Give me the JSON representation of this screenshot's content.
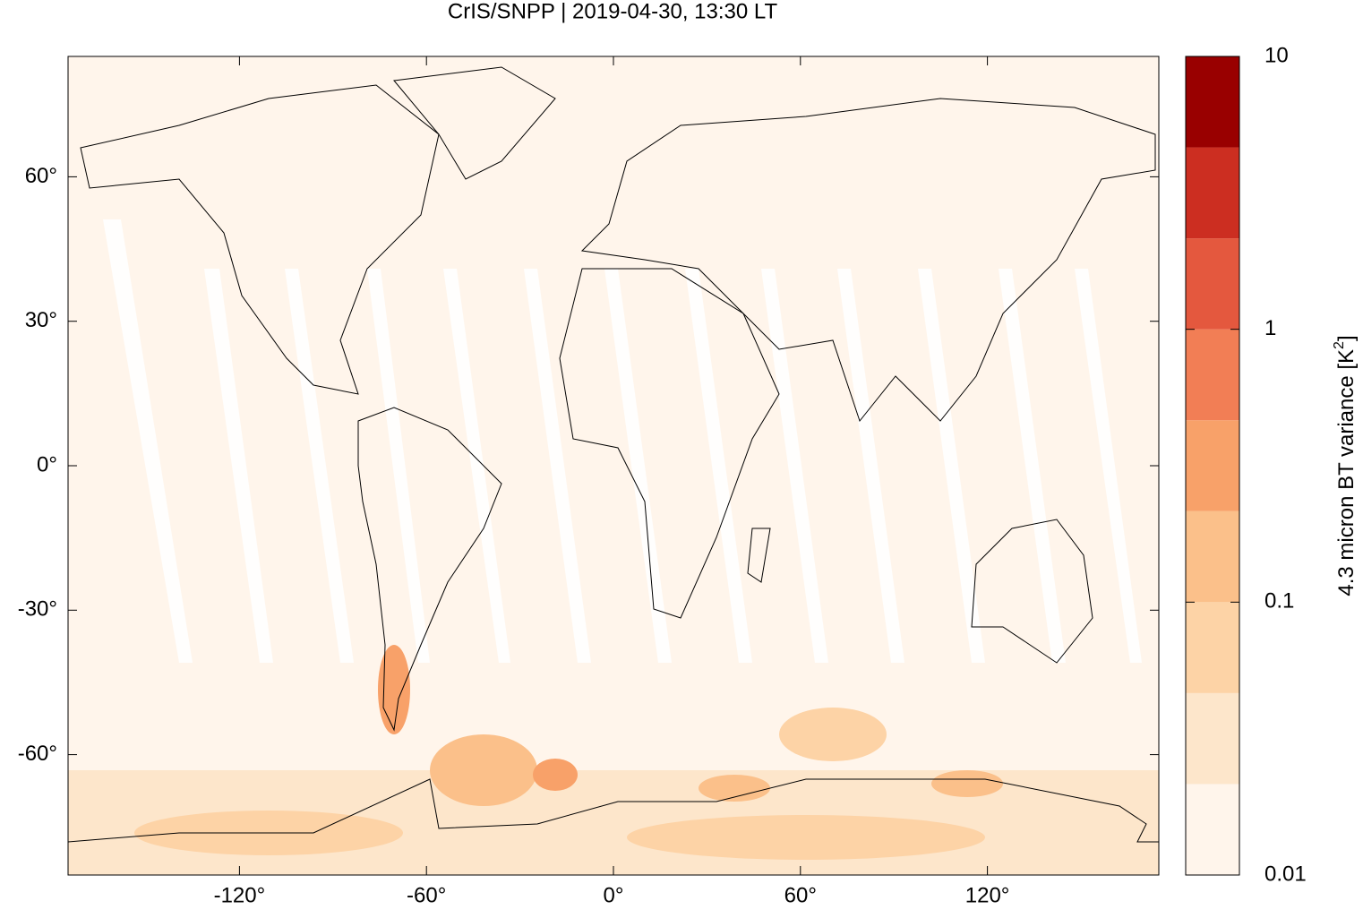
{
  "chart_data": {
    "type": "map",
    "title": "CrIS/SNPP | 2019-04-30, 13:30 LT",
    "xlim": [
      -175,
      175
    ],
    "ylim": [
      -85,
      85
    ],
    "xticks": [
      {
        "value": -120,
        "label": "-120°"
      },
      {
        "value": -60,
        "label": "-60°"
      },
      {
        "value": 0,
        "label": "0°"
      },
      {
        "value": 60,
        "label": "60°"
      },
      {
        "value": 120,
        "label": "120°"
      }
    ],
    "yticks": [
      {
        "value": 60,
        "label": "60°"
      },
      {
        "value": 30,
        "label": "30°"
      },
      {
        "value": 0,
        "label": "0°"
      },
      {
        "value": -30,
        "label": "-30°"
      },
      {
        "value": -60,
        "label": "-60°"
      }
    ],
    "colorbar": {
      "scale": "log",
      "clim": [
        0.01,
        10
      ],
      "ticks": [
        0.01,
        0.1,
        1,
        10
      ],
      "colors": [
        "#fff5eb",
        "#fde6cb",
        "#fdd3a6",
        "#fbc08a",
        "#f8a169",
        "#f27e55",
        "#e4583e",
        "#cc2e21",
        "#990000"
      ],
      "label": {
        "text": "4.3 micron BT variance [K",
        "superscript": "2",
        "suffix": "]"
      }
    }
  }
}
